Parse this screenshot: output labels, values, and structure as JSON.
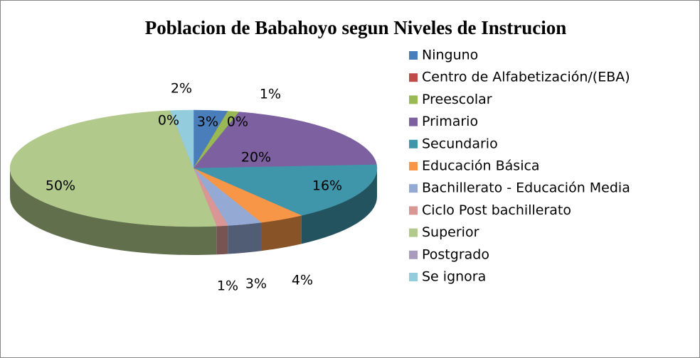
{
  "chart_data": {
    "type": "pie",
    "title": "Poblacion de Babahoyo segun Niveles de Instrucion",
    "categories": [
      "Ninguno",
      "Centro de Alfabetización/(EBA)",
      "Preescolar",
      "Primario",
      "Secundario",
      "Educación Básica",
      "Bachillerato - Educación Media",
      "Ciclo Post bachillerato",
      "Superior",
      "Postgrado",
      "Se ignora"
    ],
    "values": [
      3,
      0,
      1,
      20,
      16,
      4,
      3,
      1,
      50,
      0,
      2
    ],
    "value_labels": [
      "3%",
      "0%",
      "1%",
      "20%",
      "16%",
      "4%",
      "3%",
      "1%",
      "50%",
      "0%",
      "2%"
    ],
    "colors": [
      "#4a7ebb",
      "#be4b48",
      "#98b954",
      "#7d60a0",
      "#3f96ab",
      "#f79646",
      "#94a9d4",
      "#d99694",
      "#b1c98b",
      "#a99bbd",
      "#93cddd"
    ]
  }
}
